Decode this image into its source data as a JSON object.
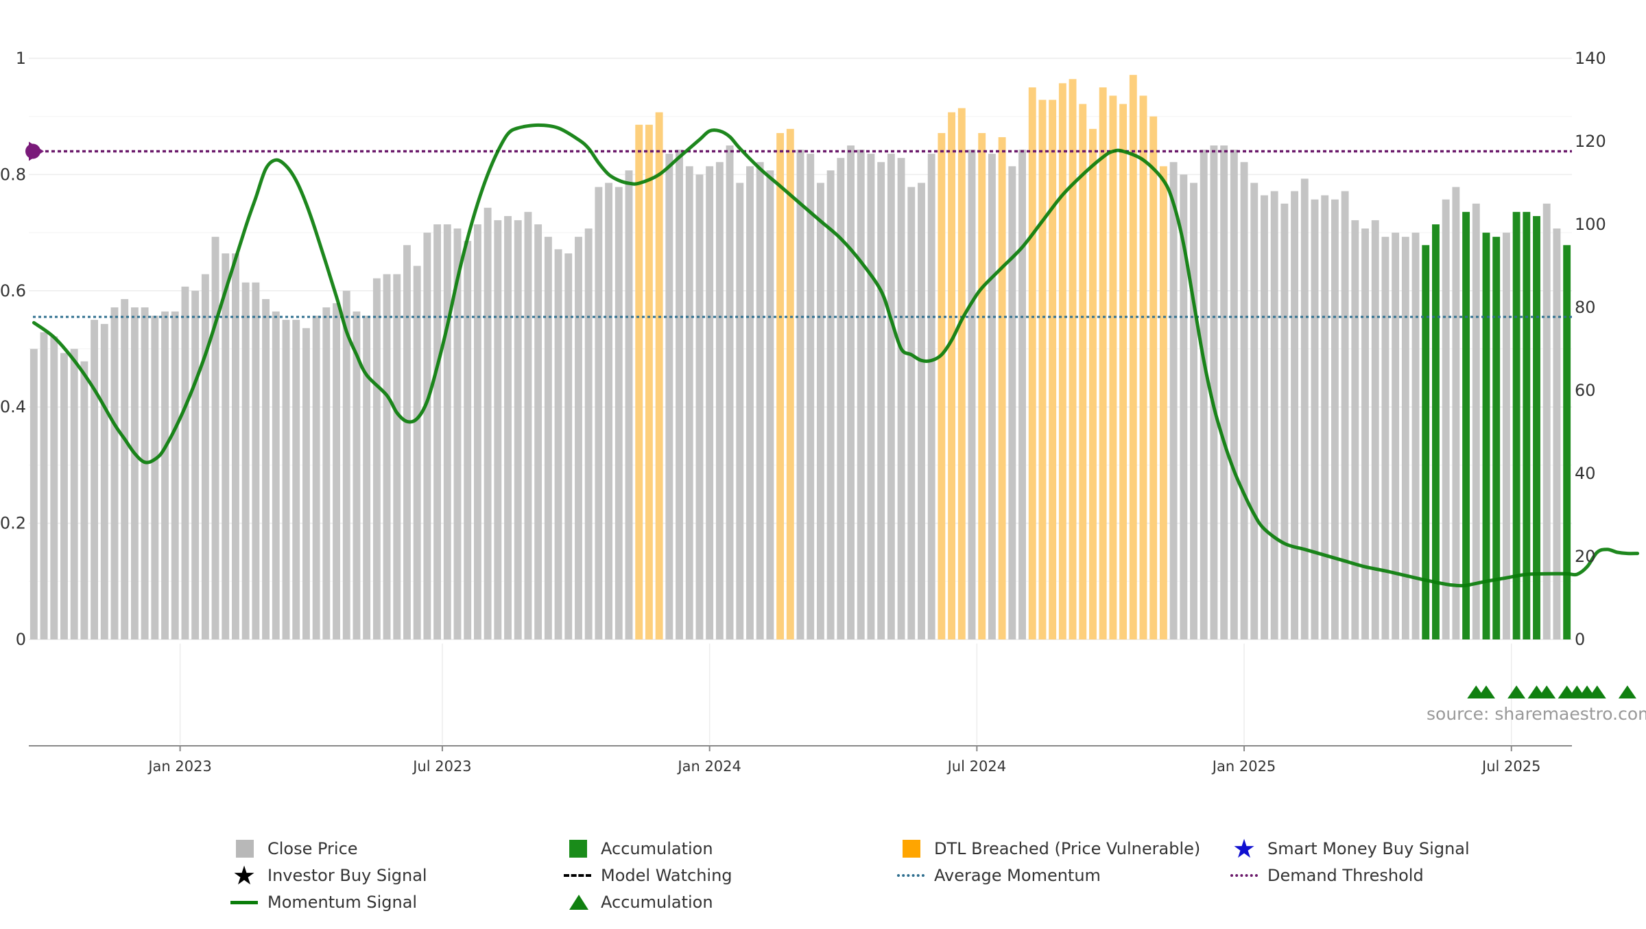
{
  "chart_data": {
    "type": "bar",
    "x_ticks": [
      "Jan 2023",
      "Jul 2023",
      "Jan 2024",
      "Jul 2024",
      "Jan 2025",
      "Jul 2025"
    ],
    "y_left": {
      "range": [
        0,
        1
      ],
      "ticks": [
        "0",
        "0.2",
        "0.4",
        "0.6",
        "0.8",
        "1"
      ]
    },
    "y_right": {
      "range": [
        0,
        140
      ],
      "ticks": [
        "0",
        "20",
        "40",
        "60",
        "80",
        "100",
        "120",
        "140"
      ]
    },
    "grid": true,
    "source_text": "source: sharemaestro.com",
    "colors": {
      "close_price": "#c0c0c0",
      "accumulation": "#1f8c1f",
      "dtl_breached": "#fbbf4f",
      "momentum": "#0a7d0a",
      "average_momentum": "#2f6f8f",
      "demand_threshold": "#6b1a6b",
      "smart_money": "#1010d0",
      "investor": "#000000"
    },
    "series": {
      "close_price": [
        70,
        74,
        73,
        69,
        70,
        67,
        77,
        76,
        80,
        82,
        80,
        80,
        78,
        79,
        79,
        85,
        84,
        88,
        97,
        93,
        93,
        86,
        86,
        82,
        79,
        77,
        77,
        75,
        78,
        80,
        81,
        84,
        79,
        78,
        87,
        88,
        88,
        95,
        90,
        98,
        100,
        100,
        99,
        96,
        100,
        104,
        101,
        102,
        101,
        103,
        100,
        97,
        94,
        93,
        97,
        99,
        109,
        110,
        109,
        113,
        124,
        124,
        127,
        117,
        118,
        114,
        112,
        114,
        115,
        119,
        110,
        114,
        115,
        113,
        122,
        123,
        118,
        117,
        110,
        113,
        116,
        119,
        118,
        117,
        115,
        117,
        116,
        109,
        110,
        117,
        122,
        127,
        128,
        118,
        122,
        117,
        121,
        114,
        118,
        133,
        130,
        130,
        134,
        135,
        129,
        123,
        133,
        131,
        129,
        136,
        131,
        126,
        114,
        115,
        112,
        110,
        118,
        119,
        119,
        118,
        115,
        110,
        107,
        108,
        105,
        108,
        111,
        106,
        107,
        106,
        108,
        101,
        99,
        101,
        97,
        98,
        97,
        98,
        95,
        100,
        106,
        109,
        103,
        105,
        98,
        97,
        98,
        103,
        103,
        102,
        105,
        99,
        95
      ],
      "bar_type": [
        "g",
        "g",
        "g",
        "g",
        "g",
        "g",
        "g",
        "g",
        "g",
        "g",
        "g",
        "g",
        "g",
        "g",
        "g",
        "g",
        "g",
        "g",
        "g",
        "g",
        "g",
        "g",
        "g",
        "g",
        "g",
        "g",
        "g",
        "g",
        "g",
        "g",
        "g",
        "g",
        "g",
        "g",
        "g",
        "g",
        "g",
        "g",
        "g",
        "g",
        "g",
        "g",
        "g",
        "g",
        "g",
        "g",
        "g",
        "g",
        "g",
        "g",
        "g",
        "g",
        "g",
        "g",
        "g",
        "g",
        "g",
        "g",
        "g",
        "g",
        "o",
        "o",
        "o",
        "g",
        "g",
        "g",
        "g",
        "g",
        "g",
        "g",
        "g",
        "g",
        "g",
        "g",
        "o",
        "o",
        "g",
        "g",
        "g",
        "g",
        "g",
        "g",
        "g",
        "g",
        "g",
        "g",
        "g",
        "g",
        "g",
        "g",
        "o",
        "o",
        "o",
        "g",
        "o",
        "g",
        "o",
        "g",
        "g",
        "o",
        "o",
        "o",
        "o",
        "o",
        "o",
        "o",
        "o",
        "o",
        "o",
        "o",
        "o",
        "o",
        "o",
        "g",
        "g",
        "g",
        "g",
        "g",
        "g",
        "g",
        "g",
        "g",
        "g",
        "g",
        "g",
        "g",
        "g",
        "g",
        "g",
        "g",
        "g",
        "g",
        "g",
        "g",
        "g",
        "g",
        "g",
        "g",
        "a",
        "a",
        "g",
        "g",
        "a",
        "g",
        "a",
        "a",
        "g",
        "a",
        "a",
        "a",
        "g",
        "g",
        "a"
      ],
      "momentum": [
        [
          0,
          0.545
        ],
        [
          2,
          0.52
        ],
        [
          4,
          0.48
        ],
        [
          6,
          0.43
        ],
        [
          8,
          0.37
        ],
        [
          9,
          0.345
        ],
        [
          10,
          0.32
        ],
        [
          11,
          0.305
        ],
        [
          12,
          0.31
        ],
        [
          13,
          0.33
        ],
        [
          15,
          0.4
        ],
        [
          17,
          0.49
        ],
        [
          19,
          0.6
        ],
        [
          21,
          0.71
        ],
        [
          22,
          0.76
        ],
        [
          23,
          0.81
        ],
        [
          24,
          0.825
        ],
        [
          25,
          0.815
        ],
        [
          26,
          0.79
        ],
        [
          27,
          0.75
        ],
        [
          28,
          0.7
        ],
        [
          30,
          0.59
        ],
        [
          31,
          0.53
        ],
        [
          32,
          0.49
        ],
        [
          33,
          0.455
        ],
        [
          35,
          0.42
        ],
        [
          36,
          0.39
        ],
        [
          37,
          0.375
        ],
        [
          38,
          0.38
        ],
        [
          39,
          0.41
        ],
        [
          40,
          0.47
        ],
        [
          41,
          0.54
        ],
        [
          42,
          0.62
        ],
        [
          43,
          0.69
        ],
        [
          44,
          0.75
        ],
        [
          45,
          0.8
        ],
        [
          46,
          0.84
        ],
        [
          47,
          0.87
        ],
        [
          48,
          0.88
        ],
        [
          50,
          0.885
        ],
        [
          52,
          0.88
        ],
        [
          54,
          0.86
        ],
        [
          55,
          0.845
        ],
        [
          56,
          0.82
        ],
        [
          57,
          0.8
        ],
        [
          58,
          0.79
        ],
        [
          59,
          0.785
        ],
        [
          60,
          0.785
        ],
        [
          62,
          0.8
        ],
        [
          64,
          0.83
        ],
        [
          66,
          0.86
        ],
        [
          67,
          0.875
        ],
        [
          68,
          0.875
        ],
        [
          69,
          0.865
        ],
        [
          70,
          0.845
        ],
        [
          72,
          0.81
        ],
        [
          74,
          0.78
        ],
        [
          76,
          0.75
        ],
        [
          78,
          0.72
        ],
        [
          80,
          0.69
        ],
        [
          82,
          0.65
        ],
        [
          84,
          0.6
        ],
        [
          85,
          0.55
        ],
        [
          86,
          0.5
        ],
        [
          87,
          0.49
        ],
        [
          88,
          0.48
        ],
        [
          89,
          0.48
        ],
        [
          90,
          0.49
        ],
        [
          91,
          0.515
        ],
        [
          92,
          0.55
        ],
        [
          93,
          0.58
        ],
        [
          94,
          0.605
        ],
        [
          96,
          0.64
        ],
        [
          98,
          0.675
        ],
        [
          100,
          0.72
        ],
        [
          102,
          0.765
        ],
        [
          104,
          0.8
        ],
        [
          106,
          0.83
        ],
        [
          107,
          0.84
        ],
        [
          108,
          0.84
        ],
        [
          110,
          0.825
        ],
        [
          112,
          0.79
        ],
        [
          113,
          0.75
        ],
        [
          114,
          0.68
        ],
        [
          115,
          0.58
        ],
        [
          116,
          0.48
        ],
        [
          117,
          0.4
        ],
        [
          118,
          0.34
        ],
        [
          119,
          0.29
        ],
        [
          120,
          0.25
        ],
        [
          121,
          0.215
        ],
        [
          122,
          0.19
        ],
        [
          124,
          0.165
        ],
        [
          126,
          0.155
        ],
        [
          128,
          0.145
        ],
        [
          130,
          0.135
        ],
        [
          132,
          0.125
        ],
        [
          134,
          0.118
        ],
        [
          136,
          0.11
        ],
        [
          138,
          0.102
        ],
        [
          140,
          0.095
        ],
        [
          141,
          0.093
        ],
        [
          142,
          0.093
        ],
        [
          144,
          0.1
        ],
        [
          146,
          0.106
        ],
        [
          148,
          0.112
        ],
        [
          150,
          0.113
        ],
        [
          152,
          0.113
        ],
        [
          153,
          0.112
        ],
        [
          154,
          0.125
        ],
        [
          155,
          0.15
        ],
        [
          156,
          0.155
        ],
        [
          157,
          0.15
        ],
        [
          158,
          0.148
        ],
        [
          159,
          0.148
        ]
      ],
      "average_momentum": 0.555,
      "demand_threshold": 0.84,
      "accumulation_markers": [
        143.5,
        144.5,
        147.5,
        149.5,
        150.5,
        152.5,
        153.5,
        154.5,
        155.5,
        158.5
      ]
    },
    "legend": [
      {
        "label": "Close Price",
        "swatch": "square",
        "color": "#b8b8b8"
      },
      {
        "label": "Accumulation",
        "swatch": "square",
        "color": "#1a8c1a"
      },
      {
        "label": "DTL Breached (Price Vulnerable)",
        "swatch": "square",
        "color": "#ffa500"
      },
      {
        "label": "Smart Money Buy Signal",
        "swatch": "star",
        "color": "#1010d0"
      },
      {
        "label": "Investor Buy Signal",
        "swatch": "star",
        "color": "#000000"
      },
      {
        "label": "Model Watching",
        "swatch": "dash",
        "color": "#000000"
      },
      {
        "label": "Average Momentum",
        "swatch": "dot",
        "color": "#2f6f8f"
      },
      {
        "label": "Demand Threshold",
        "swatch": "dot",
        "color": "#6b1a6b"
      },
      {
        "label": "Momentum Signal",
        "swatch": "line",
        "color": "#0a7d0a"
      },
      {
        "label": "Accumulation",
        "swatch": "triangle",
        "color": "#108010"
      }
    ]
  }
}
